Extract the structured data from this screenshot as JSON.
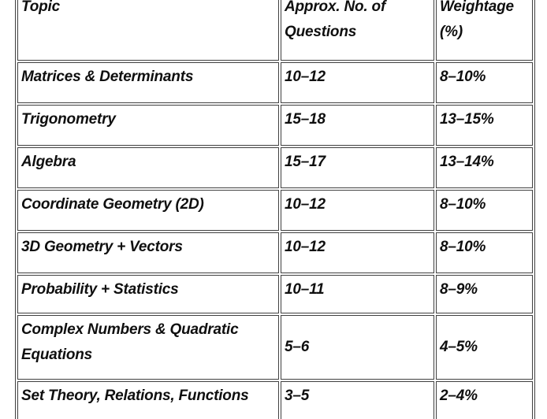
{
  "table": {
    "columns": [
      "Topic",
      "Approx. No. of Questions",
      "Weightage (%)"
    ],
    "rows": [
      {
        "topic": "Matrices & Determinants",
        "questions": "10–12",
        "weightage": "8–10%"
      },
      {
        "topic": "Trigonometry",
        "questions": "15–18",
        "weightage": "13–15%"
      },
      {
        "topic": "Algebra",
        "questions": "15–17",
        "weightage": "13–14%"
      },
      {
        "topic": "Coordinate Geometry (2D)",
        "questions": "10–12",
        "weightage": "8–10%"
      },
      {
        "topic": "3D Geometry + Vectors",
        "questions": "10–12",
        "weightage": "8–10%"
      },
      {
        "topic": "Probability + Statistics",
        "questions": "10–11",
        "weightage": "8–9%"
      },
      {
        "topic": "Complex Numbers & Quadratic Equations",
        "questions": "5–6",
        "weightage": "4–5%"
      },
      {
        "topic": "Set Theory, Relations, Functions",
        "questions": "3–5",
        "weightage": "2–4%"
      }
    ]
  },
  "colors": {
    "background": "#ffffff",
    "border": "#404040",
    "text": "#0f0f0f"
  }
}
